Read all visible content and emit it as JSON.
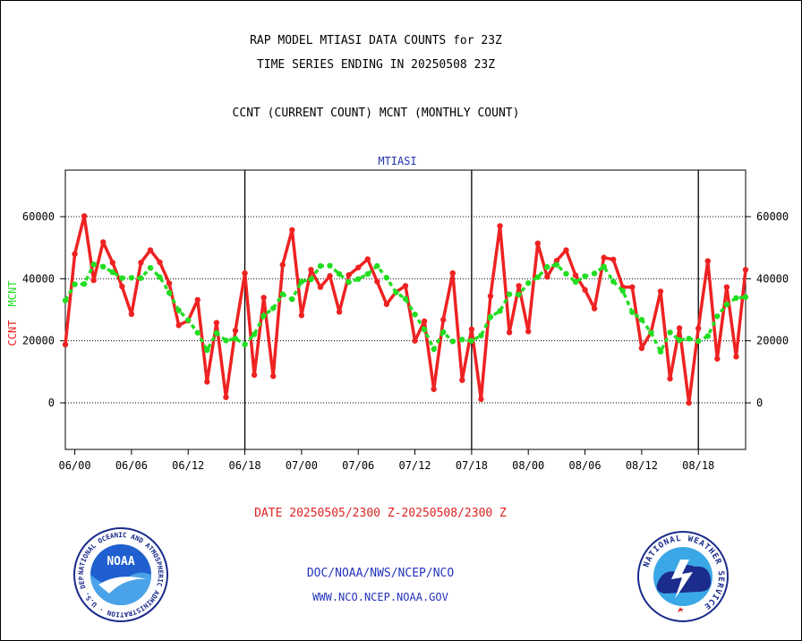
{
  "header": {
    "title_line1": "RAP MODEL MTIASI DATA COUNTS for 23Z",
    "title_line2": "TIME SERIES ENDING IN 20250508 23Z",
    "subtitle": "CCNT (CURRENT COUNT) MCNT (MONTHLY COUNT)"
  },
  "footer": {
    "date_range": "DATE 20250505/2300 Z-20250508/2300 Z",
    "agency_path": "DOC/NOAA/NWS/NCEP/NCO",
    "website": "WWW.NCO.NCEP.NOAA.GOV"
  },
  "logos": {
    "noaa_text": "NOAA",
    "noaa_ring": "NATIONAL OCEANIC AND ATMOSPHERIC ADMINISTRATION · U.S. DEPARTMENT OF COMMERCE",
    "nws_ring": "NATIONAL WEATHER SERVICE"
  },
  "colors": {
    "ccnt": "#ee2222",
    "mcnt": "#22dd22",
    "title": "#000000",
    "axis_label_top": "#2233aa",
    "footer_text": "#2233bb",
    "date_text": "#dd2222"
  },
  "chart_data": {
    "type": "line",
    "title": "MTIASI",
    "ylabel_left_parts": [
      "CCNT",
      "MCNT"
    ],
    "ylim": [
      -15000,
      75000
    ],
    "yticks": [
      0,
      20000,
      40000,
      60000
    ],
    "xticks": [
      "06/00",
      "06/06",
      "06/12",
      "06/18",
      "07/00",
      "07/06",
      "07/12",
      "07/18",
      "08/00",
      "08/06",
      "08/12",
      "08/18"
    ],
    "xtick_hours": [
      1,
      7,
      13,
      19,
      25,
      31,
      37,
      43,
      49,
      55,
      61,
      67
    ],
    "xlim_hours": [
      0,
      72
    ],
    "day_boundaries_hours": [
      19,
      43,
      67
    ],
    "grid": true,
    "series": [
      {
        "name": "CCNT",
        "color": "#ee2222",
        "x": [
          0,
          1,
          2,
          3,
          4,
          5,
          6,
          7,
          8,
          9,
          10,
          11,
          12,
          13,
          14,
          15,
          16,
          17,
          18,
          19,
          20,
          21,
          22,
          23,
          24,
          25,
          26,
          27,
          28,
          29,
          30,
          31,
          32,
          33,
          34,
          35,
          36,
          37,
          38,
          39,
          40,
          41,
          42,
          43,
          44,
          45,
          46,
          47,
          48,
          49,
          50,
          51,
          52,
          53,
          54,
          55,
          56,
          57,
          58,
          59,
          60,
          61,
          62,
          63,
          64,
          65,
          66,
          67,
          68,
          69,
          70,
          71,
          72
        ],
        "values": [
          18800,
          48000,
          60200,
          39500,
          51800,
          45200,
          37500,
          28600,
          45200,
          49200,
          45300,
          38500,
          25000,
          26500,
          33200,
          6800,
          25800,
          1800,
          23300,
          41800,
          9000,
          33900,
          8600,
          44500,
          55700,
          28200,
          42900,
          37300,
          40900,
          29300,
          41200,
          43600,
          46300,
          39100,
          31800,
          35700,
          37700,
          20000,
          26300,
          4400,
          26800,
          41800,
          7300,
          23700,
          1200,
          34400,
          57000,
          22700,
          37700,
          23000,
          51400,
          40600,
          45800,
          49200,
          41100,
          36400,
          30400,
          46800,
          46200,
          37300,
          37300,
          17600,
          22800,
          35900,
          7800,
          24100,
          0,
          24000,
          45700,
          14200,
          37300,
          14900,
          42900
        ]
      },
      {
        "name": "MCNT",
        "color": "#22dd22",
        "x": [
          0,
          1,
          2,
          3,
          4,
          5,
          6,
          7,
          8,
          9,
          10,
          11,
          12,
          13,
          14,
          15,
          16,
          17,
          18,
          19,
          20,
          21,
          22,
          23,
          24,
          25,
          26,
          27,
          28,
          29,
          30,
          31,
          32,
          33,
          34,
          35,
          36,
          37,
          38,
          39,
          40,
          41,
          42,
          43,
          44,
          45,
          46,
          47,
          48,
          49,
          50,
          51,
          52,
          53,
          54,
          55,
          56,
          57,
          58,
          59,
          60,
          61,
          62,
          63,
          64,
          65,
          66,
          67,
          68,
          69,
          70,
          71,
          72
        ],
        "values": [
          33000,
          38200,
          38300,
          44600,
          43900,
          42100,
          40200,
          40300,
          40200,
          43500,
          40500,
          35500,
          29800,
          26700,
          22600,
          17000,
          22500,
          20100,
          20700,
          18800,
          22100,
          28100,
          30500,
          35000,
          33400,
          39100,
          39800,
          44100,
          44200,
          41500,
          38900,
          39900,
          41500,
          44100,
          40300,
          35600,
          33500,
          28500,
          23600,
          17300,
          22800,
          19800,
          20400,
          20000,
          21700,
          27700,
          29600,
          35000,
          34900,
          38600,
          40500,
          43800,
          44500,
          41600,
          39000,
          40800,
          41700,
          43900,
          39100,
          36100,
          29200,
          26800,
          22600,
          16500,
          22700,
          20200,
          20700,
          19900,
          21500,
          27900,
          31700,
          33800,
          34100
        ]
      }
    ]
  }
}
